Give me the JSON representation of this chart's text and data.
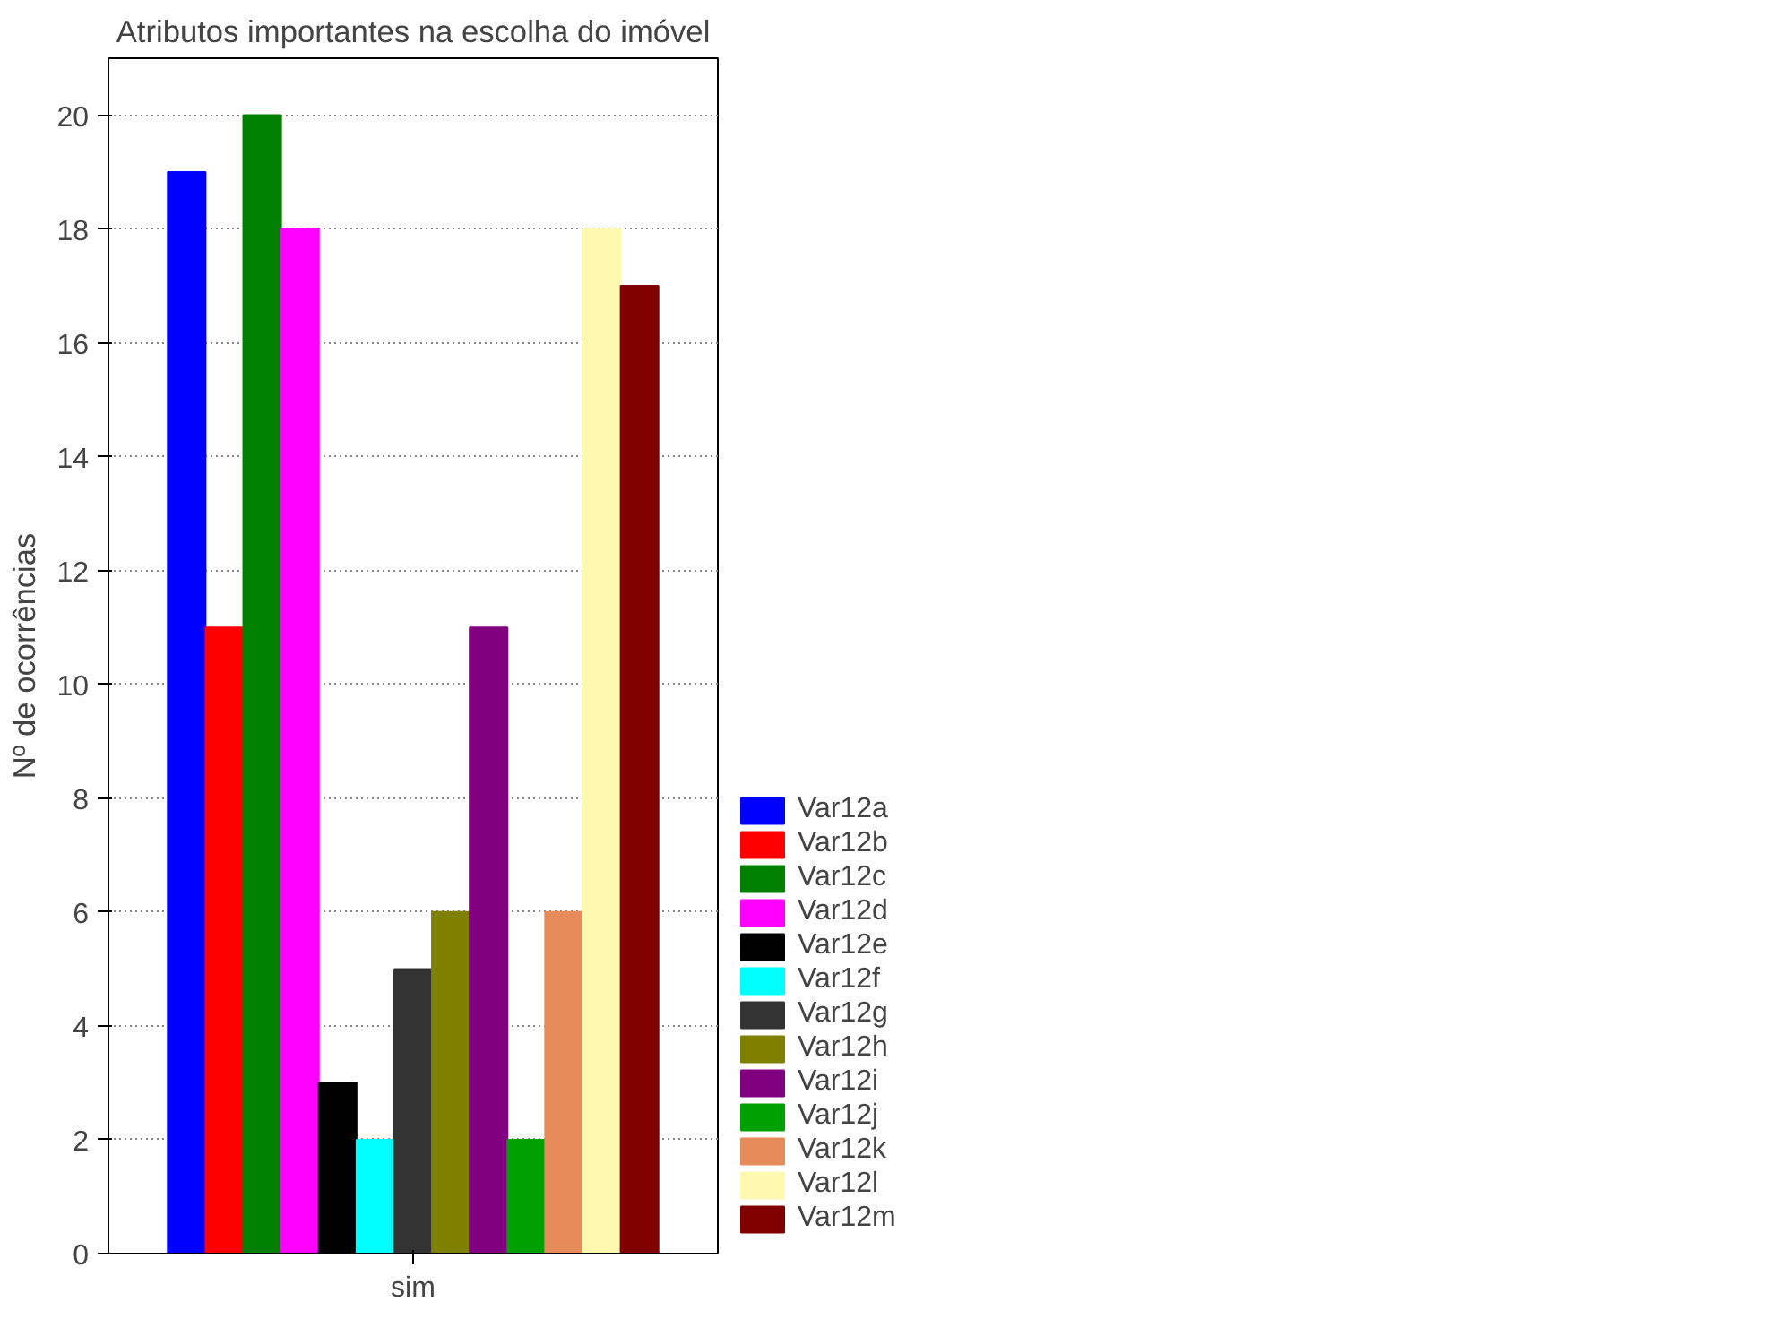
{
  "chart_data": {
    "type": "bar",
    "title": "Atributos importantes na escolha do imóvel",
    "ylabel": "Nº de ocorrências",
    "categories": [
      "sim"
    ],
    "series": [
      {
        "name": "Var12a",
        "color": "#0000ff",
        "values": [
          19
        ]
      },
      {
        "name": "Var12b",
        "color": "#ff0000",
        "values": [
          11
        ]
      },
      {
        "name": "Var12c",
        "color": "#008000",
        "values": [
          20
        ]
      },
      {
        "name": "Var12d",
        "color": "#ff00ff",
        "values": [
          18
        ]
      },
      {
        "name": "Var12e",
        "color": "#000000",
        "values": [
          3
        ]
      },
      {
        "name": "Var12f",
        "color": "#00ffff",
        "values": [
          2
        ]
      },
      {
        "name": "Var12g",
        "color": "#333333",
        "values": [
          5
        ]
      },
      {
        "name": "Var12h",
        "color": "#808000",
        "values": [
          6
        ]
      },
      {
        "name": "Var12i",
        "color": "#800080",
        "values": [
          11
        ]
      },
      {
        "name": "Var12j",
        "color": "#00a000",
        "values": [
          2
        ]
      },
      {
        "name": "Var12k",
        "color": "#e68c5a",
        "values": [
          6
        ]
      },
      {
        "name": "Var12l",
        "color": "#fff8b0",
        "values": [
          18
        ]
      },
      {
        "name": "Var12m",
        "color": "#800000",
        "values": [
          17
        ]
      }
    ],
    "ylim": [
      0,
      21
    ],
    "yticks": [
      0,
      2,
      4,
      6,
      8,
      10,
      12,
      14,
      16,
      18,
      20
    ],
    "grid": "y",
    "legend": "right"
  }
}
